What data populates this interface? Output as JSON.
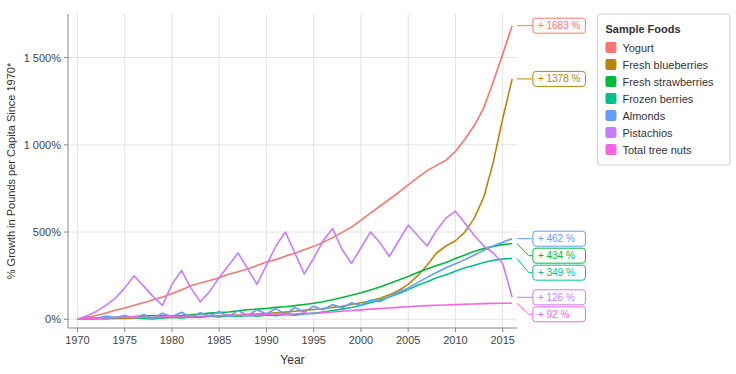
{
  "chart_data": {
    "type": "line",
    "x_label": "Year",
    "y_label": "% Growth in Pounds per Capita Since 1970*",
    "legend_title": "Sample Foods",
    "legend": "right",
    "grid": true,
    "x": [
      1970,
      1971,
      1972,
      1973,
      1974,
      1975,
      1976,
      1977,
      1978,
      1979,
      1980,
      1981,
      1982,
      1983,
      1984,
      1985,
      1986,
      1987,
      1988,
      1989,
      1990,
      1991,
      1992,
      1993,
      1994,
      1995,
      1996,
      1997,
      1998,
      1999,
      2000,
      2001,
      2002,
      2003,
      2004,
      2005,
      2006,
      2007,
      2008,
      2009,
      2010,
      2011,
      2012,
      2013,
      2014,
      2015,
      2016
    ],
    "series": [
      {
        "name": "Yogurt",
        "color": "#f8766d",
        "values": [
          0,
          12,
          22,
          36,
          52,
          65,
          80,
          95,
          112,
          128,
          148,
          168,
          192,
          208,
          222,
          238,
          258,
          272,
          288,
          308,
          328,
          342,
          362,
          378,
          398,
          418,
          442,
          468,
          498,
          528,
          568,
          608,
          648,
          688,
          728,
          770,
          812,
          852,
          882,
          912,
          962,
          1032,
          1112,
          1212,
          1362,
          1520,
          1683
        ]
      },
      {
        "name": "Fresh blueberries",
        "color": "#b8860b",
        "values": [
          0,
          2,
          3,
          4,
          5,
          5,
          6,
          7,
          8,
          9,
          10,
          11,
          13,
          15,
          17,
          19,
          21,
          24,
          27,
          30,
          33,
          37,
          41,
          46,
          51,
          56,
          62,
          68,
          75,
          85,
          95,
          105,
          120,
          140,
          165,
          200,
          250,
          310,
          380,
          420,
          450,
          500,
          580,
          700,
          900,
          1150,
          1378
        ]
      },
      {
        "name": "Fresh strawberries",
        "color": "#00ba38",
        "values": [
          0,
          3,
          5,
          8,
          10,
          12,
          15,
          18,
          22,
          20,
          18,
          22,
          25,
          30,
          35,
          38,
          42,
          48,
          55,
          58,
          62,
          68,
          72,
          78,
          85,
          92,
          100,
          112,
          125,
          138,
          152,
          168,
          185,
          205,
          225,
          245,
          268,
          288,
          308,
          325,
          348,
          368,
          390,
          405,
          418,
          428,
          434
        ]
      },
      {
        "name": "Frozen berries",
        "color": "#00c08b",
        "values": [
          0,
          5,
          8,
          3,
          10,
          15,
          10,
          5,
          2,
          8,
          12,
          8,
          14,
          10,
          18,
          14,
          20,
          16,
          22,
          18,
          25,
          20,
          28,
          24,
          30,
          35,
          42,
          50,
          58,
          68,
          80,
          95,
          110,
          128,
          148,
          170,
          195,
          215,
          238,
          255,
          275,
          295,
          310,
          325,
          338,
          345,
          349
        ]
      },
      {
        "name": "Almonds",
        "color": "#619cff",
        "values": [
          0,
          8,
          5,
          18,
          10,
          22,
          8,
          28,
          5,
          35,
          15,
          40,
          10,
          38,
          20,
          45,
          15,
          50,
          20,
          55,
          30,
          62,
          25,
          68,
          40,
          75,
          55,
          85,
          65,
          95,
          80,
          110,
          100,
          130,
          155,
          180,
          210,
          240,
          268,
          295,
          318,
          342,
          368,
          395,
          420,
          442,
          462
        ]
      },
      {
        "name": "Pistachios",
        "color": "#c77cff",
        "values": [
          0,
          20,
          45,
          80,
          120,
          180,
          250,
          190,
          130,
          80,
          200,
          280,
          180,
          100,
          160,
          240,
          310,
          380,
          290,
          200,
          310,
          420,
          500,
          380,
          260,
          350,
          450,
          520,
          400,
          320,
          410,
          500,
          440,
          360,
          450,
          540,
          480,
          420,
          510,
          580,
          620,
          550,
          480,
          420,
          380,
          320,
          126
        ]
      },
      {
        "name": "Total tree nuts",
        "color": "#f564e3",
        "values": [
          0,
          4,
          6,
          8,
          10,
          12,
          14,
          12,
          10,
          14,
          18,
          14,
          20,
          16,
          22,
          20,
          25,
          22,
          28,
          25,
          30,
          28,
          32,
          30,
          35,
          32,
          38,
          42,
          46,
          50,
          54,
          58,
          62,
          65,
          68,
          72,
          76,
          78,
          80,
          82,
          84,
          86,
          88,
          90,
          91,
          92,
          92
        ]
      }
    ],
    "annotations": [
      {
        "text": "+ 1683 %",
        "y": 1683,
        "color": "#f8766d"
      },
      {
        "text": "+ 1378 %",
        "y": 1378,
        "color": "#b8860b"
      },
      {
        "text": "+ 462 %",
        "y": 462,
        "color": "#619cff"
      },
      {
        "text": "+ 434 %",
        "y": 434,
        "color": "#00ba38"
      },
      {
        "text": "+ 349 %",
        "y": 349,
        "color": "#00c08b"
      },
      {
        "text": "+ 126 %",
        "y": 126,
        "color": "#c77cff"
      },
      {
        "text": "+ 92 %",
        "y": 92,
        "color": "#f564e3"
      }
    ],
    "xlim": [
      1969,
      2016.5
    ],
    "ylim": [
      -50,
      1750
    ],
    "xticks": [
      1970,
      1975,
      1980,
      1985,
      1990,
      1995,
      2000,
      2005,
      2010,
      2015
    ],
    "yticks": [
      {
        "value": 0,
        "label": "0%"
      },
      {
        "value": 500,
        "label": "500%"
      },
      {
        "value": 1000,
        "label": "1 000%"
      },
      {
        "value": 1500,
        "label": "1 500%"
      }
    ]
  }
}
